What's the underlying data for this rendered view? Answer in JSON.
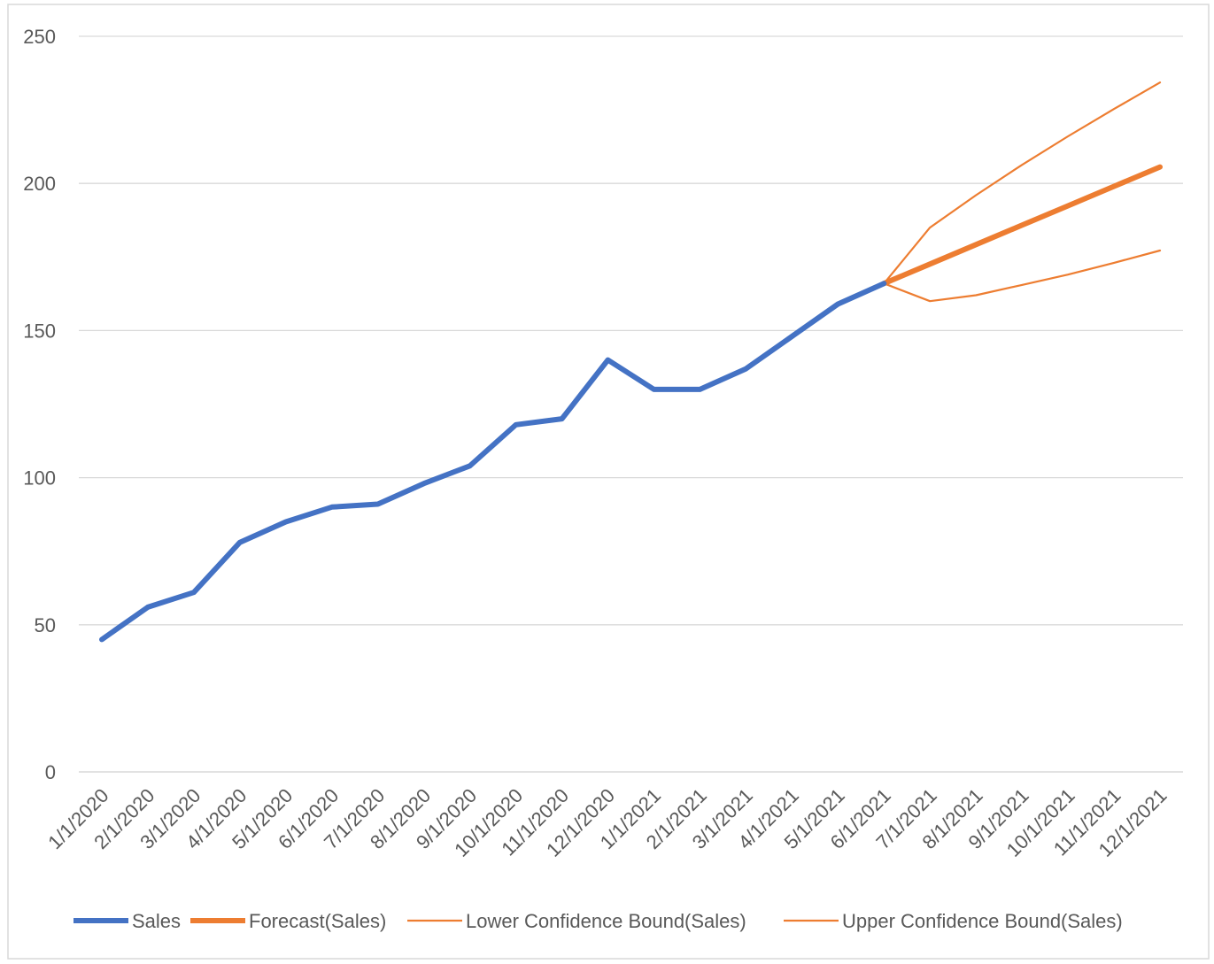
{
  "chart_data": {
    "type": "line",
    "categories": [
      "1/1/2020",
      "2/1/2020",
      "3/1/2020",
      "4/1/2020",
      "5/1/2020",
      "6/1/2020",
      "7/1/2020",
      "8/1/2020",
      "9/1/2020",
      "10/1/2020",
      "11/1/2020",
      "12/1/2020",
      "1/1/2021",
      "2/1/2021",
      "3/1/2021",
      "4/1/2021",
      "5/1/2021",
      "6/1/2021",
      "7/1/2021",
      "8/1/2021",
      "9/1/2021",
      "10/1/2021",
      "11/1/2021",
      "12/1/2021"
    ],
    "series": [
      {
        "name": "Sales",
        "color": "#4472C4",
        "style": "thick",
        "values": [
          45,
          56,
          61,
          78,
          85,
          90,
          91,
          98,
          104,
          118,
          120,
          140,
          130,
          130,
          137,
          148,
          159,
          166,
          null,
          null,
          null,
          null,
          null,
          null
        ]
      },
      {
        "name": "Forecast(Sales)",
        "color": "#ED7D31",
        "style": "thick",
        "values": [
          null,
          null,
          null,
          null,
          null,
          null,
          null,
          null,
          null,
          null,
          null,
          null,
          null,
          null,
          null,
          null,
          null,
          166,
          172.6,
          179.2,
          185.8,
          192.4,
          199,
          205.6
        ]
      },
      {
        "name": "Lower Confidence Bound(Sales)",
        "color": "#ED7D31",
        "style": "thin",
        "values": [
          null,
          null,
          null,
          null,
          null,
          null,
          null,
          null,
          null,
          null,
          null,
          null,
          null,
          null,
          null,
          null,
          null,
          166,
          160,
          162,
          165.5,
          169,
          173,
          177.2
        ]
      },
      {
        "name": "Upper Confidence Bound(Sales)",
        "color": "#ED7D31",
        "style": "thin",
        "values": [
          null,
          null,
          null,
          null,
          null,
          null,
          null,
          null,
          null,
          null,
          null,
          null,
          null,
          null,
          null,
          null,
          null,
          166,
          185,
          196,
          206.3,
          216,
          225.3,
          234.3
        ]
      }
    ],
    "ylim": [
      0,
      250
    ],
    "yticks": [
      0,
      50,
      100,
      150,
      200,
      250
    ],
    "grid": true,
    "legend_position": "bottom",
    "title": "",
    "xlabel": "",
    "ylabel": ""
  }
}
